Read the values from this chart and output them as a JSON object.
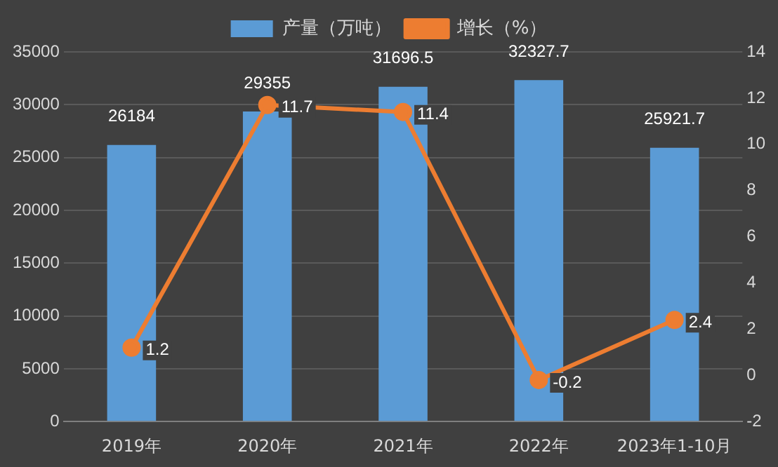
{
  "chart_data": {
    "type": "bar",
    "categories": [
      "2019年",
      "2020年",
      "2021年",
      "2022年",
      "2023年1-10月"
    ],
    "series": [
      {
        "name": "产量（万吨）",
        "color": "#5b9bd5",
        "values": [
          26184,
          29355,
          31696.5,
          32327.7,
          25921.7
        ]
      },
      {
        "name": "增长（%）",
        "type": "line",
        "axis": "y2",
        "color": "#ed7d31",
        "values": [
          1.2,
          11.7,
          11.4,
          -0.2,
          2.4
        ]
      }
    ],
    "ylim": [
      0,
      35000
    ],
    "yticks": [
      0,
      5000,
      10000,
      15000,
      20000,
      25000,
      30000,
      35000
    ],
    "y2lim": [
      -2,
      14
    ],
    "y2ticks": [
      -2,
      0,
      2,
      4,
      6,
      8,
      10,
      12,
      14
    ],
    "data_labels": true,
    "grid": "y",
    "legend": "top",
    "marker": "circle",
    "line_style": "solid"
  }
}
